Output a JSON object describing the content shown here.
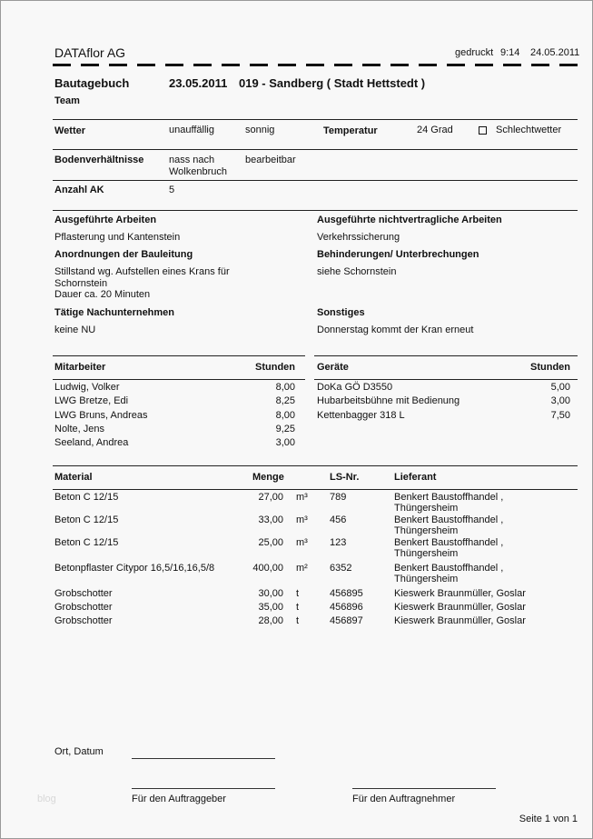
{
  "header": {
    "company": "DATAflor AG",
    "printed_label": "gedruckt",
    "printed_time": "9:14",
    "printed_date": "24.05.2011"
  },
  "title": {
    "doc": "Bautagebuch",
    "date": "23.05.2011",
    "project": "019 - Sandberg ( Stadt Hettstedt )",
    "team": "Team"
  },
  "weather": {
    "label": "Wetter",
    "value1": "unauffällig",
    "value2": "sonnig",
    "temp_label": "Temperatur",
    "temp_value": "24 Grad",
    "bad_weather_label": "Schlechtwetter",
    "bad_weather_checked": false
  },
  "soil": {
    "label": "Bodenverhältnisse",
    "value1_line1": "nass nach",
    "value1_line2": "Wolkenbruch",
    "value2": "bearbeitbar"
  },
  "workers_count": {
    "label": "Anzahl AK",
    "value": "5"
  },
  "sections": {
    "done_label": "Ausgeführte Arbeiten",
    "done_text": "Pflasterung und Kantenstein",
    "extra_label": "Ausgeführte nichtvertragliche Arbeiten",
    "extra_text": "Verkehrssicherung",
    "orders_label": "Anordnungen der Bauleitung",
    "orders_lines": [
      "Stillstand wg. Aufstellen eines Krans für",
      "Schornstein",
      "Dauer ca. 20 Minuten"
    ],
    "hindrance_label": "Behinderungen/ Unterbrechungen",
    "hindrance_text": "siehe Schornstein",
    "subs_label": "Tätige Nachunternehmen",
    "subs_text": "keine NU",
    "misc_label": "Sonstiges",
    "misc_text": "Donnerstag kommt der Kran erneut"
  },
  "staff": {
    "col_name": "Mitarbeiter",
    "col_hours": "Stunden",
    "rows": [
      {
        "name": "Ludwig, Volker",
        "hours": "8,00"
      },
      {
        "name": "LWG Bretze, Edi",
        "hours": "8,25"
      },
      {
        "name": "LWG Bruns, Andreas",
        "hours": "8,00"
      },
      {
        "name": "Nolte, Jens",
        "hours": "9,25"
      },
      {
        "name": "Seeland, Andrea",
        "hours": "3,00"
      }
    ]
  },
  "equipment": {
    "col_name": "Geräte",
    "col_hours": "Stunden",
    "rows": [
      {
        "name": "DoKa GÖ D3550",
        "hours": "5,00"
      },
      {
        "name": "Hubarbeitsbühne mit Bedienung",
        "hours": "3,00"
      },
      {
        "name": "Kettenbagger 318 L",
        "hours": "7,50"
      }
    ]
  },
  "material": {
    "col_material": "Material",
    "col_qty": "Menge",
    "col_ls": "LS-Nr.",
    "col_supplier": "Lieferant",
    "rows": [
      {
        "material": "Beton C 12/15",
        "qty": "27,00",
        "unit": "m³",
        "ls": "789",
        "supplier1": "Benkert Baustoffhandel ,",
        "supplier2": "Thüngersheim"
      },
      {
        "material": "Beton C 12/15",
        "qty": "33,00",
        "unit": "m³",
        "ls": "456",
        "supplier1": "Benkert Baustoffhandel ,",
        "supplier2": "Thüngersheim"
      },
      {
        "material": "Beton C 12/15",
        "qty": "25,00",
        "unit": "m³",
        "ls": "123",
        "supplier1": "Benkert Baustoffhandel ,",
        "supplier2": "Thüngersheim"
      },
      {
        "material": "Betonpflaster Citypor 16,5/16,16,5/8",
        "qty": "400,00",
        "unit": "m²",
        "ls": "6352",
        "supplier1": "Benkert Baustoffhandel ,",
        "supplier2": "Thüngersheim"
      },
      {
        "material": "Grobschotter",
        "qty": "30,00",
        "unit": "t",
        "ls": "456895",
        "supplier1": "Kieswerk Braunmüller, Goslar",
        "supplier2": ""
      },
      {
        "material": "Grobschotter",
        "qty": "35,00",
        "unit": "t",
        "ls": "456896",
        "supplier1": "Kieswerk Braunmüller, Goslar",
        "supplier2": ""
      },
      {
        "material": "Grobschotter",
        "qty": "28,00",
        "unit": "t",
        "ls": "456897",
        "supplier1": "Kieswerk Braunmüller, Goslar",
        "supplier2": ""
      }
    ]
  },
  "footer": {
    "place_date": "Ort, Datum",
    "client": "Für den Auftraggeber",
    "contractor": "Für den Auftragnehmer",
    "page": "Seite 1 von 1",
    "watermark": "blog"
  }
}
